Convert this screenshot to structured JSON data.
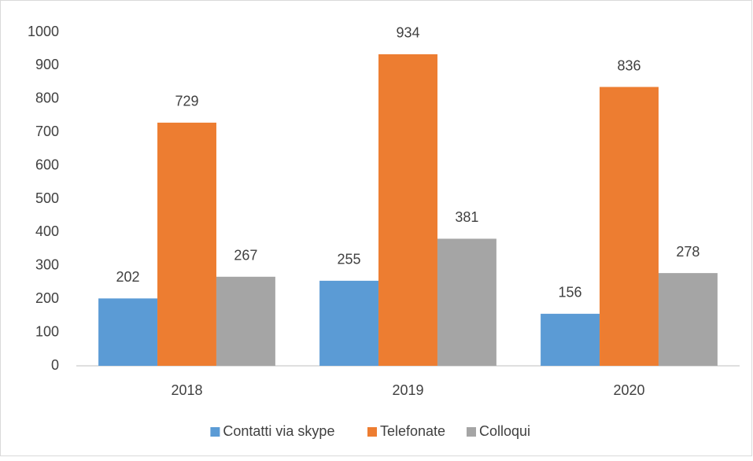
{
  "chart_data": {
    "type": "bar",
    "categories": [
      "2018",
      "2019",
      "2020"
    ],
    "series": [
      {
        "name": "Contatti via skype",
        "color": "#5b9bd5",
        "values": [
          202,
          255,
          156
        ]
      },
      {
        "name": "Telefonate",
        "color": "#ed7d31",
        "values": [
          729,
          934,
          836
        ]
      },
      {
        "name": "Colloqui",
        "color": "#a5a5a5",
        "values": [
          267,
          381,
          278
        ]
      }
    ],
    "ylim": [
      0,
      1000
    ],
    "yticks": [
      0,
      100,
      200,
      300,
      400,
      500,
      600,
      700,
      800,
      900,
      1000
    ],
    "grid": false,
    "legend": "bottom"
  }
}
